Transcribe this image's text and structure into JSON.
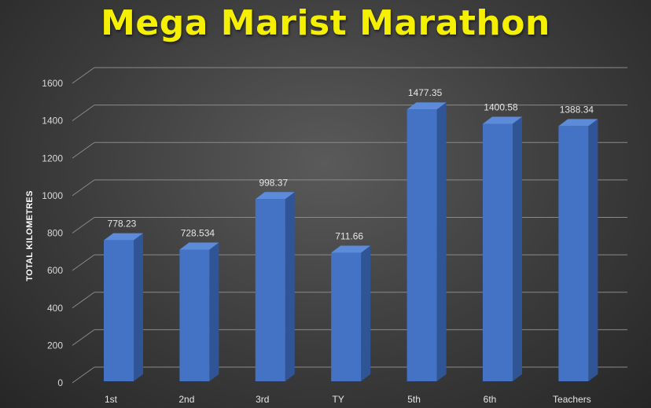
{
  "chart_data": {
    "type": "bar",
    "title": "Mega Marist Marathon",
    "xlabel": "",
    "ylabel": "TOTAL KILOMETRES",
    "categories": [
      "1st",
      "2nd",
      "3rd",
      "TY",
      "5th",
      "6th",
      "Teachers"
    ],
    "values": [
      778.23,
      728.534,
      998.37,
      711.66,
      1477.35,
      1400.58,
      1388.34
    ],
    "data_labels": [
      "778.23",
      "728.534",
      "998.37",
      "711.66",
      "1477.35",
      "1400.58",
      "1388.34"
    ],
    "yticks": [
      0,
      200,
      400,
      600,
      800,
      1000,
      1200,
      1400,
      1600
    ],
    "ylim": [
      0,
      1600
    ],
    "grid": true,
    "legend": "none",
    "colors": {
      "bar_front": "#4472c4",
      "bar_side": "#2f5597",
      "bar_top": "#5b8bd9",
      "title": "#f5f000",
      "gridline": "#8a8a8a"
    }
  }
}
